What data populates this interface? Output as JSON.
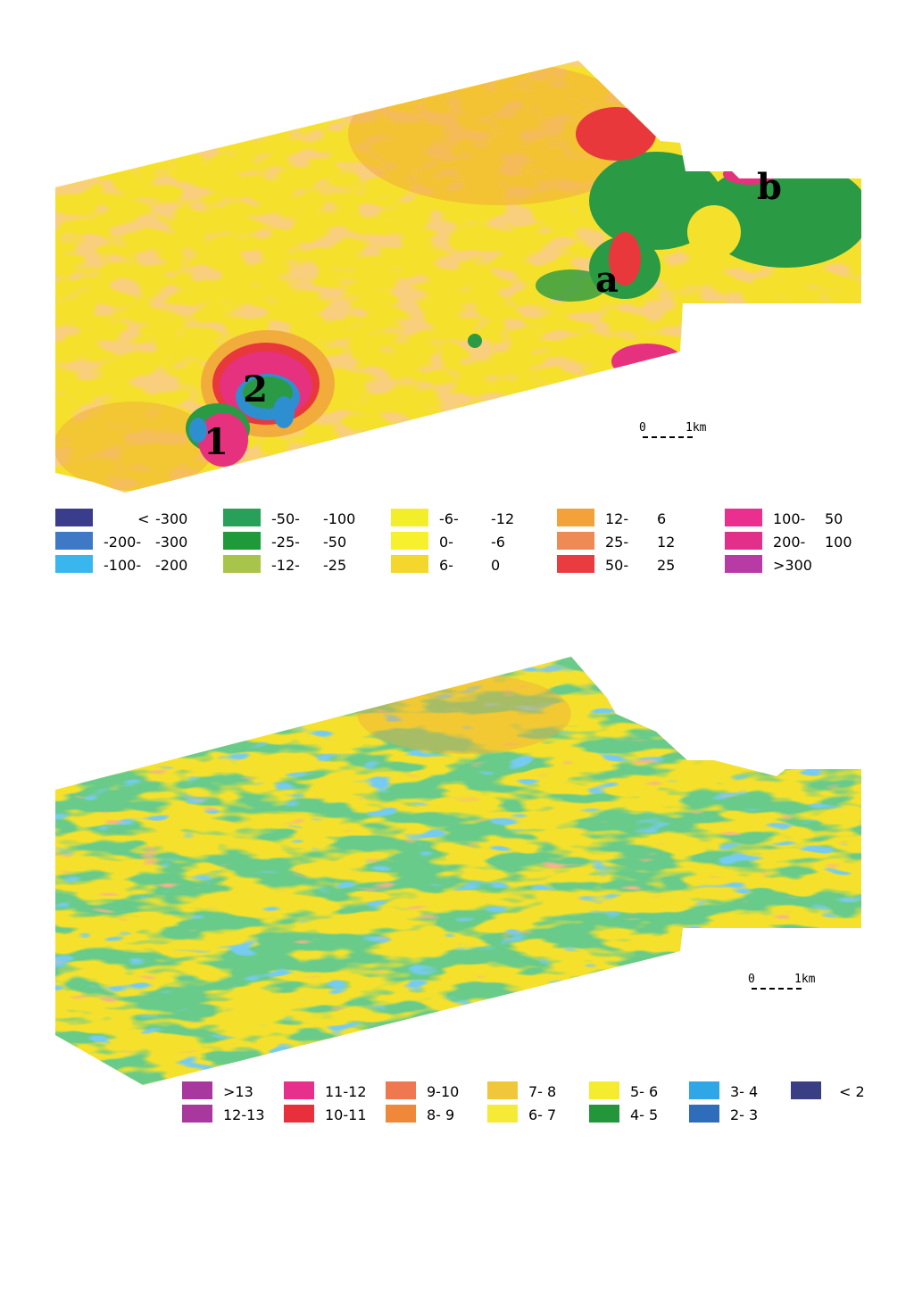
{
  "map_top": {
    "markers": [
      {
        "label": "1",
        "id": "1"
      },
      {
        "label": "2",
        "id": "2"
      },
      {
        "label": "a",
        "id": "a"
      },
      {
        "label": "b",
        "id": "b"
      }
    ],
    "scale": {
      "zero": "0",
      "km": "1km"
    },
    "legend": [
      {
        "color": "#3a3c8c",
        "lo": "<",
        "hi": "-300"
      },
      {
        "color": "#3f78c4",
        "lo": "-200-",
        "hi": "-300"
      },
      {
        "color": "#39b6ee",
        "lo": "-100-",
        "hi": "-200"
      },
      {
        "color": "#27a05a",
        "lo": "-50-",
        "hi": "-100"
      },
      {
        "color": "#1e9a3a",
        "lo": "-25-",
        "hi": "-50"
      },
      {
        "color": "#a9c44a",
        "lo": "-12-",
        "hi": "-25"
      },
      {
        "color": "#f2ee2a",
        "lo": "-6-",
        "hi": "-12"
      },
      {
        "color": "#f7f02c",
        "lo": "0-",
        "hi": "-6"
      },
      {
        "color": "#f3d72c",
        "lo": "6-",
        "hi": "0"
      },
      {
        "color": "#f2a239",
        "lo": "12-",
        "hi": "6"
      },
      {
        "color": "#f08a55",
        "lo": "25-",
        "hi": "12"
      },
      {
        "color": "#ea3b41",
        "lo": "50-",
        "hi": "25"
      },
      {
        "color": "#ea2f8e",
        "lo": "100-",
        "hi": "50"
      },
      {
        "color": "#e2308a",
        "lo": "200-",
        "hi": "100"
      },
      {
        "color": "#b83aa5",
        "lo": ">300",
        "hi": ""
      }
    ]
  },
  "map_bottom": {
    "scale": {
      "zero": "0",
      "km": "1km"
    },
    "legend": [
      {
        "color": "#a9389e",
        "label": ">13"
      },
      {
        "color": "#a9389e",
        "label": "12-13"
      },
      {
        "color": "#e6308c",
        "label": "11-12"
      },
      {
        "color": "#e8303c",
        "label": "10-11"
      },
      {
        "color": "#f07850",
        "label": "9-10"
      },
      {
        "color": "#f0883a",
        "label": "8- 9"
      },
      {
        "color": "#f0c63a",
        "label": "7- 8"
      },
      {
        "color": "#f5ea36",
        "label": "6- 7"
      },
      {
        "color": "#f5ec30",
        "label": "5- 6"
      },
      {
        "color": "#23963c",
        "label": "4- 5"
      },
      {
        "color": "#2fa6e6",
        "label": "3- 4"
      },
      {
        "color": "#2e6cbc",
        "label": "2- 3"
      },
      {
        "color": "#3a3e82",
        "label": "< 2"
      }
    ]
  },
  "palette": {
    "yellow": "#f5e12c",
    "orange": "#f2ac3c",
    "green": "#2b9a44",
    "magenta": "#e6317e",
    "red": "#e8383c",
    "blue": "#2e8fd0"
  }
}
